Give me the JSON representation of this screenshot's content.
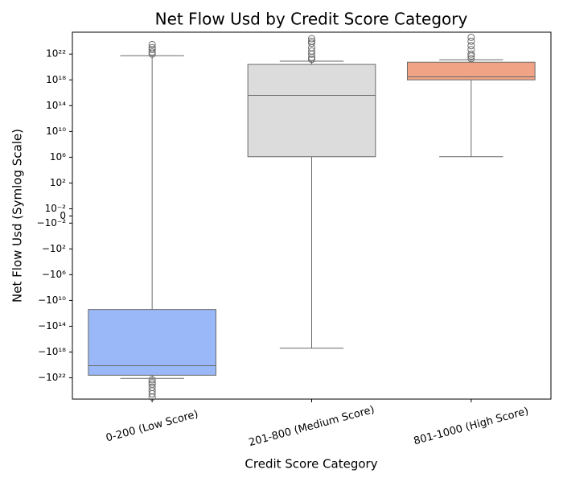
{
  "chart_data": {
    "type": "box",
    "title": "Net Flow Usd by Credit Score Category",
    "xlabel": "Credit Score Category",
    "ylabel": "Net Flow Usd (Symlog Scale)",
    "yscale": "symlog",
    "linthresh": 0.01,
    "categories": [
      "0-200 (Low Score)",
      "201-800 (Medium Score)",
      "801-1000 (High Score)"
    ],
    "boxes": [
      {
        "color": "#9ab8f7",
        "whisker_low": -1.2e+22,
        "q1": -4e+21,
        "median": -1.3e+20,
        "q3": -250000000000.0,
        "whisker_high": 5.6e+21,
        "outliers": [
          1e+22,
          2e+22,
          5e+22,
          1e+23,
          3e+23,
          -2e+22,
          -5e+22,
          -1e+23,
          -3e+23,
          -1e+24,
          -3e+24,
          -1e+25
        ]
      },
      {
        "color": "#dcdcdc",
        "whisker_low": -2.5e+17,
        "q1": 1200000.0,
        "median": 4000000000000000.0,
        "q3": 2.5e+20,
        "whisker_high": 8e+20,
        "outliers": [
          1.5e+21,
          3e+21,
          1e+22,
          3e+22,
          1e+23,
          5e+23,
          1e+24,
          2.5e+24
        ]
      },
      {
        "color": "#f0a385",
        "whisker_low": 1200000.0,
        "q1": 1e+18,
        "median": 3e+18,
        "q3": 5.6e+20,
        "whisker_high": 1.3e+21,
        "outliers": [
          2e+21,
          5e+21,
          1e+22,
          5e+22,
          2e+23,
          1e+24,
          4e+24
        ]
      }
    ],
    "ylim": [
      -2e+25,
      2.5e+25
    ],
    "yticks": [
      {
        "value": 1e+22,
        "label": "10²²"
      },
      {
        "value": 1e+18,
        "label": "10¹⁸"
      },
      {
        "value": 100000000000000.0,
        "label": "10¹⁴"
      },
      {
        "value": 10000000000.0,
        "label": "10¹⁰"
      },
      {
        "value": 1000000.0,
        "label": "10⁶"
      },
      {
        "value": 100,
        "label": "10²"
      },
      {
        "value": 0.01,
        "label": "10⁻²"
      },
      0,
      {
        "value": -0.01,
        "label": "−10⁻²"
      },
      {
        "value": -100,
        "label": "−10²"
      },
      {
        "value": -1000000.0,
        "label": "−10⁶"
      },
      {
        "value": -10000000000.0,
        "label": "−10¹⁰"
      },
      {
        "value": -100000000000000.0,
        "label": "−10¹⁴"
      },
      {
        "value": -1e+18,
        "label": "−10¹⁸"
      },
      {
        "value": -1e+22,
        "label": "−10²²"
      }
    ]
  }
}
